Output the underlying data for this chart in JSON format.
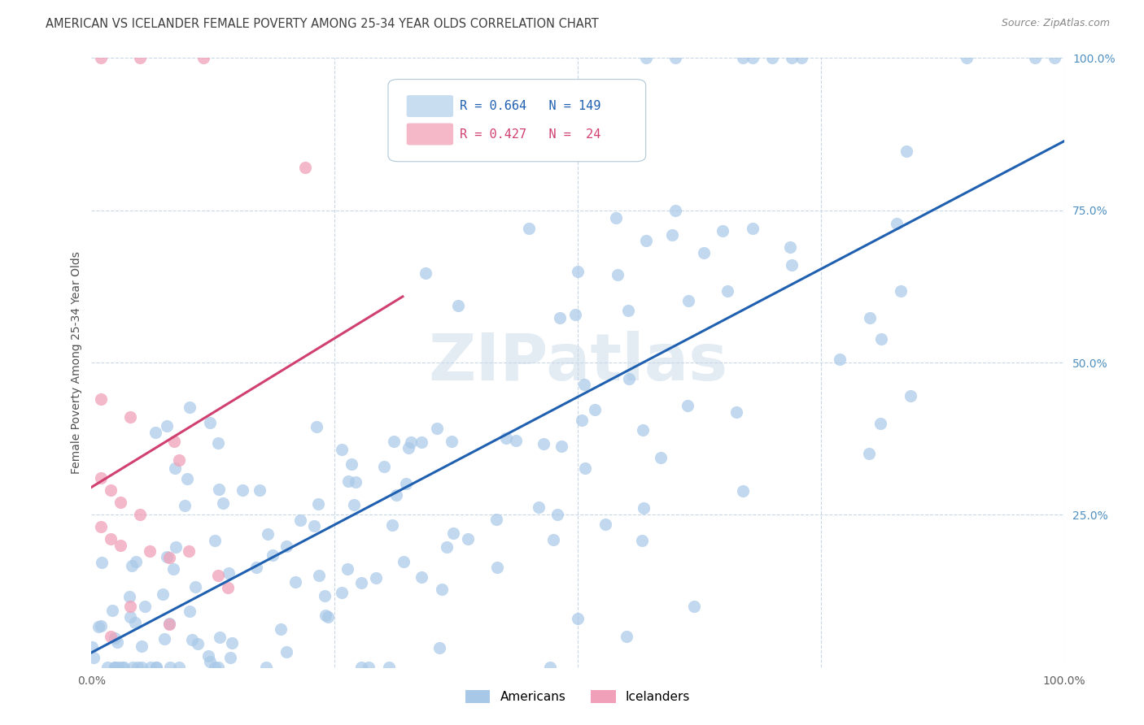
{
  "title": "AMERICAN VS ICELANDER FEMALE POVERTY AMONG 25-34 YEAR OLDS CORRELATION CHART",
  "source": "Source: ZipAtlas.com",
  "ylabel": "Female Poverty Among 25-34 Year Olds",
  "american_R": 0.664,
  "american_N": 149,
  "icelander_R": 0.427,
  "icelander_N": 24,
  "american_color": "#a8c8e8",
  "icelander_color": "#f0a0b8",
  "american_line_color": "#2060b0",
  "icelander_line_color": "#d04070",
  "icelander_line_dashed_color": "#e080a0",
  "watermark": "ZIPatlas",
  "background_color": "#ffffff",
  "grid_color": "#c8d8e8",
  "title_color": "#404040",
  "source_color": "#888888",
  "legend_border_color": "#b0c8d8",
  "legend_bg_american": "#c8ddf0",
  "legend_bg_icelander": "#f5b8c8",
  "legend_text_american": "#2060b0",
  "legend_text_icelander": "#d04070",
  "right_axis_color": "#5090c0",
  "american_seed": 12345,
  "icelander_seed": 99
}
